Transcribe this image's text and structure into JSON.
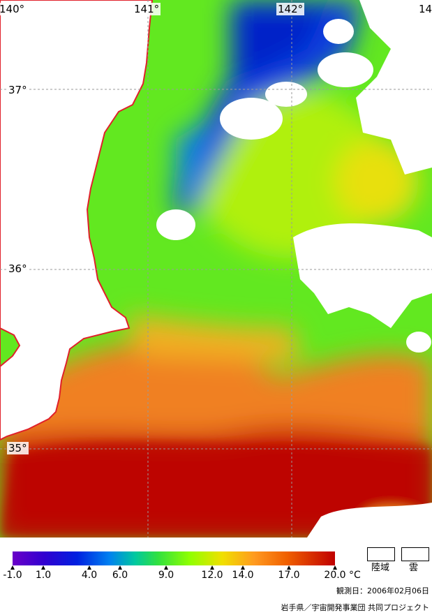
{
  "map": {
    "longitude_labels": [
      "140°",
      "141°",
      "142°",
      "14"
    ],
    "latitude_labels": [
      "37°",
      "36°",
      "35°"
    ],
    "colors": {
      "land": "#ffffff",
      "cloud": "#ffffff",
      "coastline": "#e0202a",
      "grid": "#9a9a9a"
    }
  },
  "colorbar": {
    "ticks": [
      "-1.0",
      "1.0",
      "4.0",
      "6.0",
      "9.0",
      "12.0",
      "14.0",
      "17.0",
      "20.0"
    ],
    "tick_values": [
      -1.0,
      1.0,
      4.0,
      6.0,
      9.0,
      12.0,
      14.0,
      17.0,
      20.0
    ],
    "unit": "°C"
  },
  "legend": {
    "land_label": "陸域",
    "cloud_label": "雲"
  },
  "observation_date": "観測日：2006年02月06日",
  "credit": "岩手県／宇宙開発事業団 共同プロジェクト"
}
